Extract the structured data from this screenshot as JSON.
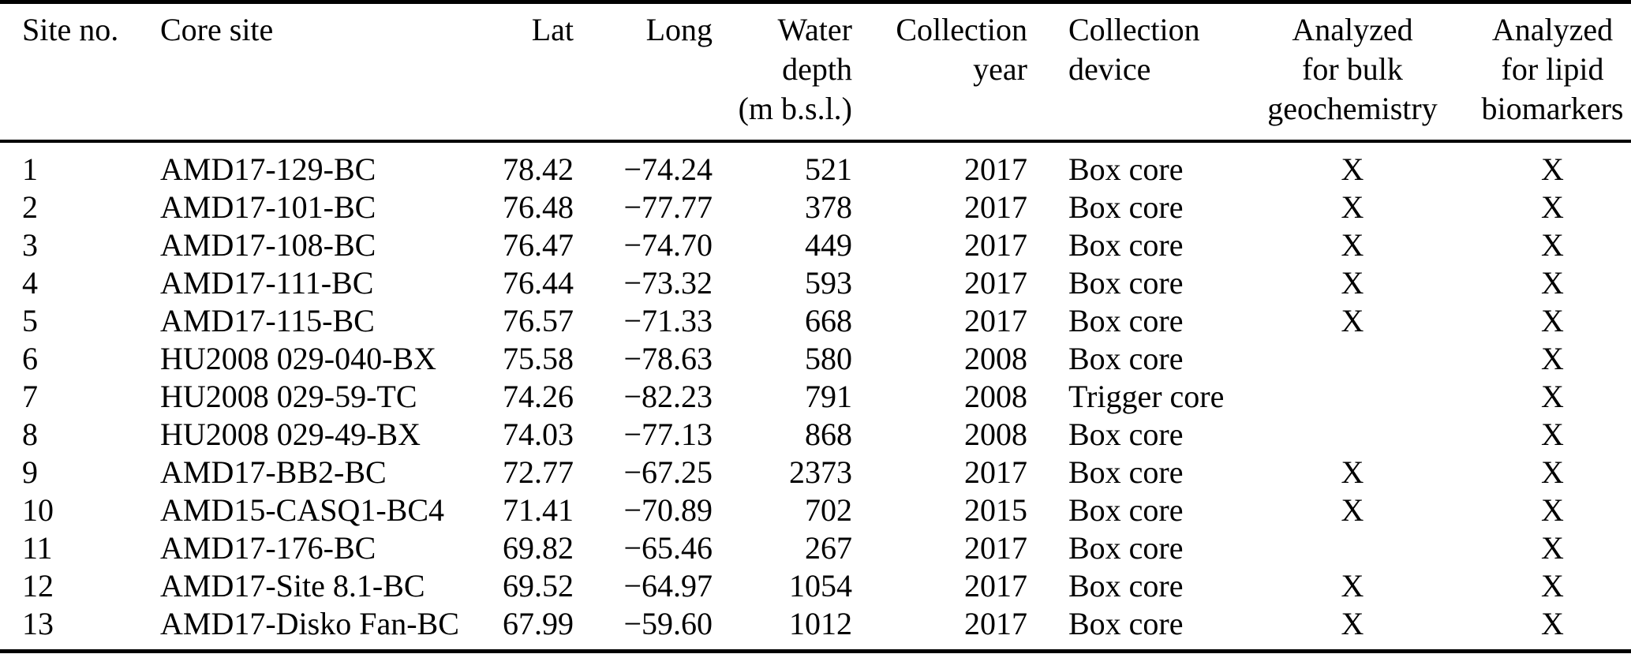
{
  "colors": {
    "background": "#ffffff",
    "text": "#000000",
    "rule": "#000000"
  },
  "table": {
    "column_keys": [
      "site_no",
      "core_site",
      "lat",
      "long",
      "water_depth",
      "collection_year",
      "collection_device",
      "analyzed_bulk_geochemistry",
      "analyzed_lipid_biomarkers"
    ],
    "header": [
      {
        "key": "site_no",
        "lines": [
          "Site no."
        ]
      },
      {
        "key": "core_site",
        "lines": [
          "Core site"
        ]
      },
      {
        "key": "lat",
        "lines": [
          "Lat"
        ]
      },
      {
        "key": "long",
        "lines": [
          "Long"
        ]
      },
      {
        "key": "water_depth",
        "lines": [
          "Water",
          "depth",
          "(m b.s.l.)"
        ]
      },
      {
        "key": "collection_year",
        "lines": [
          "Collection",
          "year"
        ]
      },
      {
        "key": "collection_device",
        "lines": [
          "Collection",
          "device"
        ]
      },
      {
        "key": "analyzed_bulk_geochemistry",
        "lines": [
          "Analyzed",
          "for bulk",
          "geochemistry"
        ]
      },
      {
        "key": "analyzed_lipid_biomarkers",
        "lines": [
          "Analyzed",
          "for lipid",
          "biomarkers"
        ]
      }
    ],
    "rows": [
      {
        "site_no": "1",
        "core_site": "AMD17-129-BC",
        "lat": "78.42",
        "long": "−74.24",
        "water_depth": "521",
        "collection_year": "2017",
        "collection_device": "Box core",
        "analyzed_bulk_geochemistry": "X",
        "analyzed_lipid_biomarkers": "X"
      },
      {
        "site_no": "2",
        "core_site": "AMD17-101-BC",
        "lat": "76.48",
        "long": "−77.77",
        "water_depth": "378",
        "collection_year": "2017",
        "collection_device": "Box core",
        "analyzed_bulk_geochemistry": "X",
        "analyzed_lipid_biomarkers": "X"
      },
      {
        "site_no": "3",
        "core_site": "AMD17-108-BC",
        "lat": "76.47",
        "long": "−74.70",
        "water_depth": "449",
        "collection_year": "2017",
        "collection_device": "Box core",
        "analyzed_bulk_geochemistry": "X",
        "analyzed_lipid_biomarkers": "X"
      },
      {
        "site_no": "4",
        "core_site": "AMD17-111-BC",
        "lat": "76.44",
        "long": "−73.32",
        "water_depth": "593",
        "collection_year": "2017",
        "collection_device": "Box core",
        "analyzed_bulk_geochemistry": "X",
        "analyzed_lipid_biomarkers": "X"
      },
      {
        "site_no": "5",
        "core_site": "AMD17-115-BC",
        "lat": "76.57",
        "long": "−71.33",
        "water_depth": "668",
        "collection_year": "2017",
        "collection_device": "Box core",
        "analyzed_bulk_geochemistry": "X",
        "analyzed_lipid_biomarkers": "X"
      },
      {
        "site_no": "6",
        "core_site": "HU2008 029-040-BX",
        "lat": "75.58",
        "long": "−78.63",
        "water_depth": "580",
        "collection_year": "2008",
        "collection_device": "Box core",
        "analyzed_bulk_geochemistry": "",
        "analyzed_lipid_biomarkers": "X"
      },
      {
        "site_no": "7",
        "core_site": "HU2008 029-59-TC",
        "lat": "74.26",
        "long": "−82.23",
        "water_depth": "791",
        "collection_year": "2008",
        "collection_device": "Trigger core",
        "analyzed_bulk_geochemistry": "",
        "analyzed_lipid_biomarkers": "X"
      },
      {
        "site_no": "8",
        "core_site": "HU2008 029-49-BX",
        "lat": "74.03",
        "long": "−77.13",
        "water_depth": "868",
        "collection_year": "2008",
        "collection_device": "Box core",
        "analyzed_bulk_geochemistry": "",
        "analyzed_lipid_biomarkers": "X"
      },
      {
        "site_no": "9",
        "core_site": "AMD17-BB2-BC",
        "lat": "72.77",
        "long": "−67.25",
        "water_depth": "2373",
        "collection_year": "2017",
        "collection_device": "Box core",
        "analyzed_bulk_geochemistry": "X",
        "analyzed_lipid_biomarkers": "X"
      },
      {
        "site_no": "10",
        "core_site": "AMD15-CASQ1-BC4",
        "lat": "71.41",
        "long": "−70.89",
        "water_depth": "702",
        "collection_year": "2015",
        "collection_device": "Box core",
        "analyzed_bulk_geochemistry": "X",
        "analyzed_lipid_biomarkers": "X"
      },
      {
        "site_no": "11",
        "core_site": "AMD17-176-BC",
        "lat": "69.82",
        "long": "−65.46",
        "water_depth": "267",
        "collection_year": "2017",
        "collection_device": "Box core",
        "analyzed_bulk_geochemistry": "",
        "analyzed_lipid_biomarkers": "X"
      },
      {
        "site_no": "12",
        "core_site": "AMD17-Site 8.1-BC",
        "lat": "69.52",
        "long": "−64.97",
        "water_depth": "1054",
        "collection_year": "2017",
        "collection_device": "Box core",
        "analyzed_bulk_geochemistry": "X",
        "analyzed_lipid_biomarkers": "X"
      },
      {
        "site_no": "13",
        "core_site": "AMD17-Disko Fan-BC",
        "lat": "67.99",
        "long": "−59.60",
        "water_depth": "1012",
        "collection_year": "2017",
        "collection_device": "Box core",
        "analyzed_bulk_geochemistry": "X",
        "analyzed_lipid_biomarkers": "X"
      }
    ]
  }
}
